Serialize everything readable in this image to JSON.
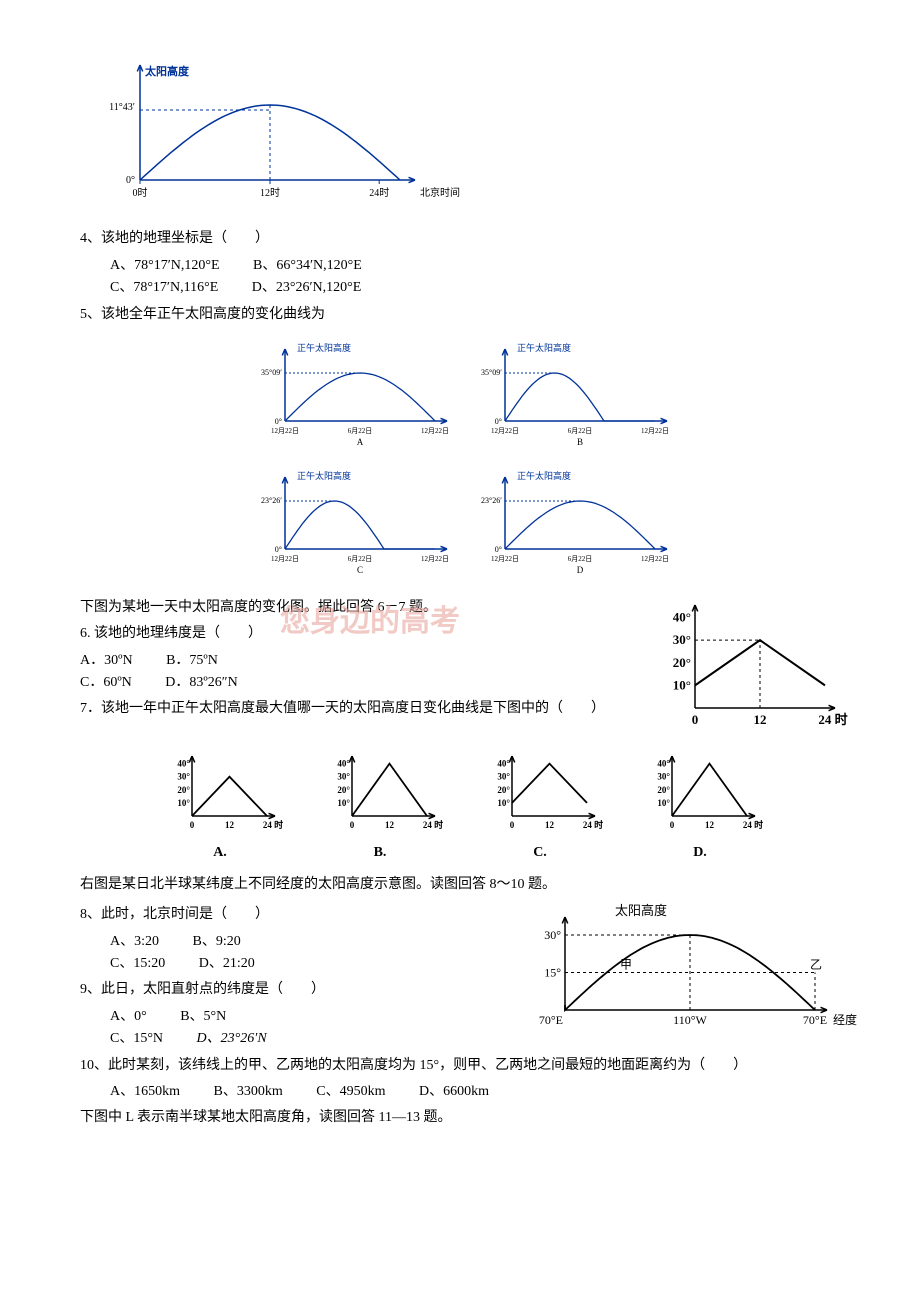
{
  "fig1": {
    "y_label": "太阳高度",
    "y_tick_top": "11°43′",
    "y_tick_bot": "0°",
    "x_ticks": [
      "0时",
      "12时",
      "24时"
    ],
    "x_right_label": "北京时间",
    "curve_color": "#003399",
    "axis_color": "#003399",
    "fontsize": 11
  },
  "q4": {
    "stem": "4、该地的地理坐标是（　　）",
    "A": "A、78°17′N,120°E",
    "B": "B、66°34′N,120°E",
    "C": "C、78°17′N,116°E",
    "D": "D、23°26′N,120°E"
  },
  "q5": {
    "stem": "5、该地全年正午太阳高度的变化曲线为",
    "charts": [
      {
        "label": "A",
        "y_label": "正午太阳高度",
        "y_tick": "35°09′",
        "x_ticks": [
          "12月22日",
          "6月22日",
          "12月22日"
        ]
      },
      {
        "label": "B",
        "y_label": "正午太阳高度",
        "y_tick": "35°09′",
        "x_ticks": [
          "12月22日",
          "6月22日",
          "12月22日"
        ]
      },
      {
        "label": "C",
        "y_label": "正午太阳高度",
        "y_tick": "23°26′",
        "x_ticks": [
          "12月22日",
          "6月22日",
          "12月22日"
        ]
      },
      {
        "label": "D",
        "y_label": "正午太阳高度",
        "y_tick": "23°26′",
        "x_ticks": [
          "12月22日",
          "6月22日",
          "12月22日"
        ]
      }
    ],
    "chart_color": "#003399"
  },
  "intro67": "下图为某地一天中太阳高度的变化图。据此回答 6－7 题。",
  "fig67": {
    "y_ticks": [
      "40°",
      "30°",
      "20°",
      "10°"
    ],
    "x_ticks": [
      "0",
      "12",
      "24 时"
    ],
    "color": "#000000"
  },
  "q6": {
    "stem": "6. 该地的地理纬度是（　　）",
    "A": "A．30ºN",
    "B": "B．75ºN",
    "C": "C．60ºN",
    "D": "D．83º26″N"
  },
  "q7": {
    "stem": "7．该地一年中正午太阳高度最大值哪一天的太阳高度日变化曲线是下图中的（　　）",
    "labels": [
      "A.",
      "B.",
      "C.",
      "D."
    ],
    "mini": {
      "y_ticks": [
        "40°",
        "30°",
        "20°",
        "10°"
      ],
      "x_ticks": [
        "0",
        "12",
        "24 时"
      ],
      "color": "#000000"
    }
  },
  "intro810": "右图是某日北半球某纬度上不同经度的太阳高度示意图。读图回答 8～10 题。",
  "fig810": {
    "y_label": "太阳高度",
    "y_ticks": [
      "30°",
      "15°"
    ],
    "x_left": "70°E",
    "x_mid": "110°W",
    "x_right": "70°E",
    "x_axis_label": "经度",
    "labels": {
      "jia": "甲",
      "yi": "乙"
    },
    "color": "#000000"
  },
  "q8": {
    "stem": "8、此时，北京时间是（　　）",
    "A": "A、3:20",
    "B": "B、9:20",
    "C": "C、15:20",
    "D": "D、21:20"
  },
  "q9": {
    "stem": "9、此日，太阳直射点的纬度是（　　）",
    "A": "A、0°",
    "B": "B、5°N",
    "C": "C、15°N",
    "D": "D、23°26′N"
  },
  "q10": {
    "stem": "10、此时某刻，该纬线上的甲、乙两地的太阳高度均为 15°，则甲、乙两地之间最短的地面距离约为（　　）",
    "A": "A、1650km",
    "B": "B、3300km",
    "C": "C、4950km",
    "D": "D、6600km"
  },
  "intro1113": "下图中 L 表示南半球某地太阳高度角，读图回答 11—13 题。",
  "watermark": "您身边的高考"
}
